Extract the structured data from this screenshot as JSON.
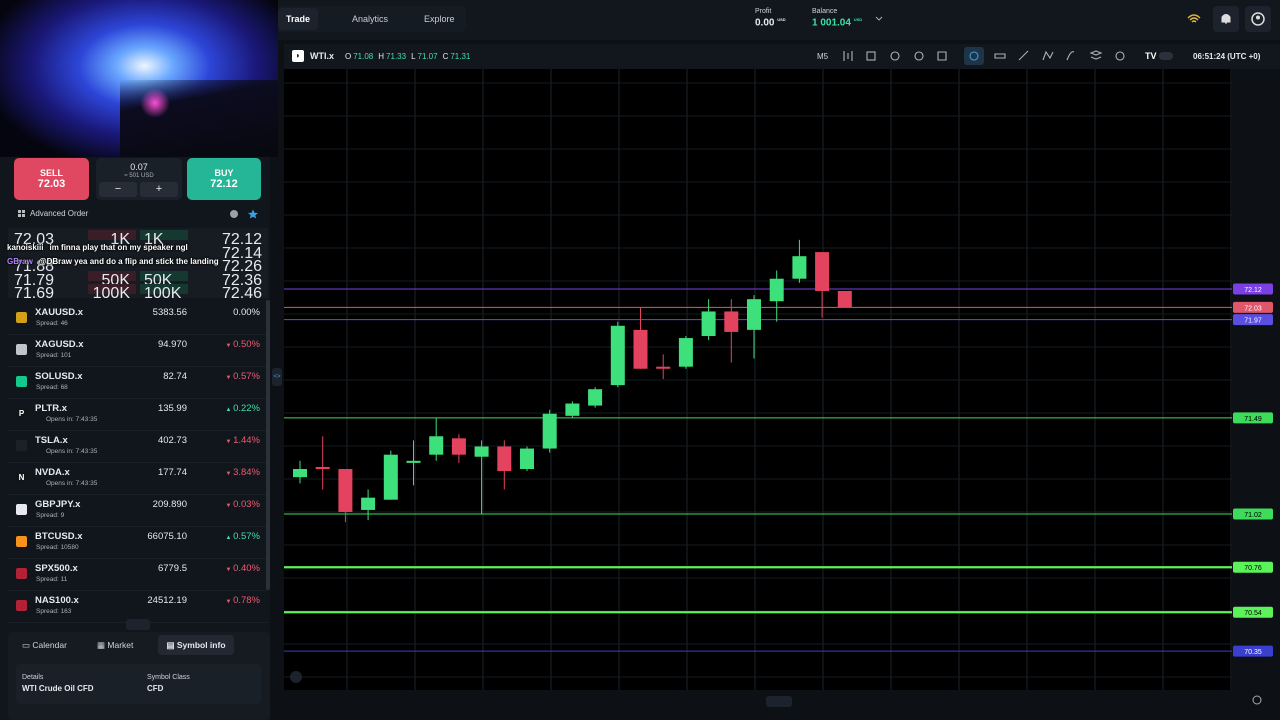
{
  "nav": {
    "tabs": [
      "Trade",
      "Analytics",
      "Explore"
    ],
    "active": 0
  },
  "account": {
    "profit_label": "Profit",
    "profit": "0.00",
    "balance_label": "Balance",
    "balance": "1 001.04",
    "currency": "USD"
  },
  "order": {
    "sell_label": "SELL",
    "sell_price": "72.03",
    "volume": "0.07",
    "volume_value": "≈ 501 USD",
    "minus": "−",
    "plus": "+",
    "buy_label": "BUY",
    "buy_price": "72.12",
    "advanced": "Advanced Order"
  },
  "order_book": [
    {
      "bid": "72.03",
      "bid_size": "1K",
      "ask_size": "1K",
      "ask": "72.12"
    },
    {
      "ask": "72.14"
    },
    {
      "bid": "71.88",
      "ask": "72.26"
    },
    {
      "bid": "71.79",
      "bid_size": "50K",
      "ask_size": "50K",
      "ask": "72.36"
    },
    {
      "bid": "71.69",
      "bid_size": "100K",
      "ask_size": "100K",
      "ask": "72.46"
    }
  ],
  "chat": [
    {
      "user": "kanoiskiii",
      "text": "im finna play that on my speaker ngl"
    },
    {
      "user": "GBraw",
      "text": "@DBraw yea and do a flip and stick the landing"
    }
  ],
  "watchlist": [
    {
      "symbol": "XAUUSD.x",
      "sub": "Spread: 46",
      "price": "5383.56",
      "change": "0.00%",
      "dir": "flat",
      "icon": "#d4a017"
    },
    {
      "symbol": "XAGUSD.x",
      "sub": "Spread: 101",
      "price": "94.970",
      "change": "0.50%",
      "dir": "down",
      "icon": "#c0c4cc"
    },
    {
      "symbol": "SOLUSD.x",
      "sub": "Spread: 68",
      "price": "82.74",
      "change": "0.57%",
      "dir": "down",
      "icon": "#14c98c"
    },
    {
      "symbol": "PLTR.x",
      "badge": "P",
      "sub": "Opens in: 7:43:35",
      "price": "135.99",
      "change": "0.22%",
      "dir": "up",
      "icon": "#111418"
    },
    {
      "symbol": "TSLA.x",
      "sub": "Opens in: 7:43:35",
      "price": "402.73",
      "change": "1.44%",
      "dir": "down",
      "icon": "#1c2128"
    },
    {
      "symbol": "NVDA.x",
      "badge": "N",
      "sub": "Opens in: 7:43:35",
      "price": "177.74",
      "change": "3.84%",
      "dir": "down",
      "icon": "#111418"
    },
    {
      "symbol": "GBPJPY.x",
      "sub": "Spread: 9",
      "price": "209.890",
      "change": "0.03%",
      "dir": "down",
      "icon": "#e8e8f0"
    },
    {
      "symbol": "BTCUSD.x",
      "sub": "Spread: 10580",
      "price": "66075.10",
      "change": "0.57%",
      "dir": "up",
      "icon": "#f7931a"
    },
    {
      "symbol": "SPX500.x",
      "sub": "Spread: 11",
      "price": "6779.5",
      "change": "0.40%",
      "dir": "down",
      "icon": "#b22234"
    },
    {
      "symbol": "NAS100.x",
      "sub": "Spread: 163",
      "price": "24512.19",
      "change": "0.78%",
      "dir": "down",
      "icon": "#b22234"
    }
  ],
  "bottom_tabs": [
    "Calendar",
    "Market",
    "Symbol info"
  ],
  "details": {
    "label": "Details",
    "value": "WTI Crude Oil CFD",
    "class_label": "Symbol Class",
    "class_value": "CFD"
  },
  "chart": {
    "symbol": "WTI.x",
    "ohlc": [
      {
        "label": "O",
        "value": "71.08"
      },
      {
        "label": "H",
        "value": "71.33"
      },
      {
        "label": "L",
        "value": "71.07"
      },
      {
        "label": "C",
        "value": "71.31"
      }
    ],
    "timeframe": "M5",
    "clock": "06:51:24 (UTC +0)",
    "ylim": [
      70.16,
      73.19
    ],
    "up_color": "#3ee07c",
    "down_color": "#e3435f",
    "candles": [
      {
        "open": 71.2,
        "high": 71.28,
        "low": 71.17,
        "close": 71.24
      },
      {
        "open": 71.25,
        "high": 71.4,
        "low": 71.14,
        "close": 71.24
      },
      {
        "open": 71.24,
        "high": 71.24,
        "low": 70.98,
        "close": 71.03
      },
      {
        "open": 71.04,
        "high": 71.14,
        "low": 70.99,
        "close": 71.1
      },
      {
        "open": 71.09,
        "high": 71.33,
        "low": 71.09,
        "close": 71.31
      },
      {
        "open": 71.27,
        "high": 71.38,
        "low": 71.16,
        "close": 71.28
      },
      {
        "open": 71.31,
        "high": 71.49,
        "low": 71.28,
        "close": 71.4
      },
      {
        "open": 71.39,
        "high": 71.41,
        "low": 71.27,
        "close": 71.31
      },
      {
        "open": 71.3,
        "high": 71.38,
        "low": 71.02,
        "close": 71.35
      },
      {
        "open": 71.35,
        "high": 71.38,
        "low": 71.14,
        "close": 71.23
      },
      {
        "open": 71.24,
        "high": 71.35,
        "low": 71.23,
        "close": 71.34
      },
      {
        "open": 71.34,
        "high": 71.53,
        "low": 71.32,
        "close": 71.51
      },
      {
        "open": 71.5,
        "high": 71.57,
        "low": 71.49,
        "close": 71.56
      },
      {
        "open": 71.55,
        "high": 71.64,
        "low": 71.54,
        "close": 71.63
      },
      {
        "open": 71.65,
        "high": 71.96,
        "low": 71.64,
        "close": 71.94
      },
      {
        "open": 71.92,
        "high": 72.03,
        "low": 71.73,
        "close": 71.73
      },
      {
        "open": 71.74,
        "high": 71.8,
        "low": 71.68,
        "close": 71.73
      },
      {
        "open": 71.74,
        "high": 71.89,
        "low": 71.73,
        "close": 71.88
      },
      {
        "open": 71.89,
        "high": 72.07,
        "low": 71.87,
        "close": 72.01
      },
      {
        "open": 72.01,
        "high": 72.07,
        "low": 71.76,
        "close": 71.91
      },
      {
        "open": 71.92,
        "high": 72.09,
        "low": 71.78,
        "close": 72.07
      },
      {
        "open": 72.06,
        "high": 72.21,
        "low": 71.96,
        "close": 72.17
      },
      {
        "open": 72.17,
        "high": 72.36,
        "low": 72.15,
        "close": 72.28
      },
      {
        "open": 72.3,
        "high": 72.3,
        "low": 71.98,
        "close": 72.11
      },
      {
        "open": 72.11,
        "high": 72.11,
        "low": 72.03,
        "close": 72.03
      }
    ],
    "levels": [
      {
        "value": 72.12,
        "color": "#7b3fe4"
      },
      {
        "value": 72.03,
        "color": "#e0566a"
      },
      {
        "value": 71.97,
        "color": "#5a4fe0"
      },
      {
        "value": 71.49,
        "color": "#3ddc5a"
      },
      {
        "value": 71.02,
        "color": "#3ddc5a"
      },
      {
        "value": 70.76,
        "color": "#5cf25a"
      },
      {
        "value": 70.54,
        "color": "#5cf25a"
      },
      {
        "value": 70.35,
        "color": "#3a3fcf"
      }
    ]
  }
}
